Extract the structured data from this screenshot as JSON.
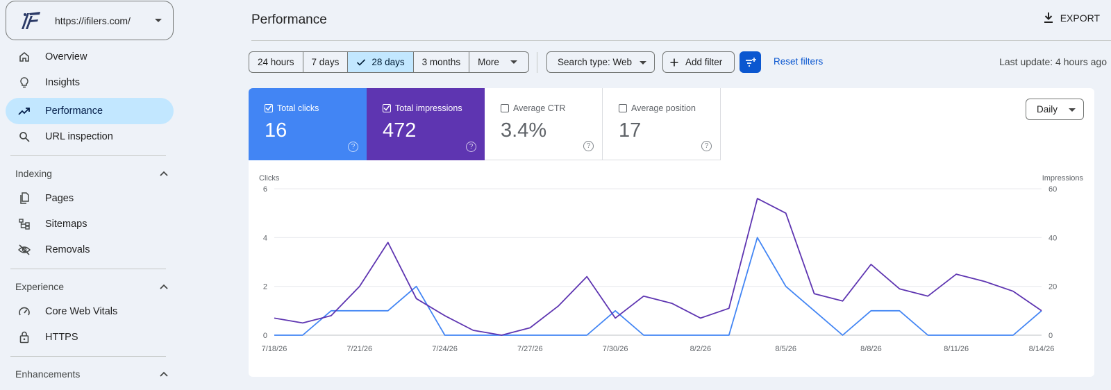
{
  "property": {
    "url": "https://ifilers.com/"
  },
  "sidebar": {
    "items": [
      {
        "label": "Overview",
        "icon": "home-icon"
      },
      {
        "label": "Insights",
        "icon": "lightbulb-icon"
      },
      {
        "label": "Performance",
        "icon": "trending-up-icon",
        "active": true
      },
      {
        "label": "URL inspection",
        "icon": "search-icon"
      }
    ],
    "indexing": {
      "title": "Indexing",
      "items": [
        {
          "label": "Pages",
          "icon": "pages-icon"
        },
        {
          "label": "Sitemaps",
          "icon": "sitemap-icon"
        },
        {
          "label": "Removals",
          "icon": "eye-off-icon"
        }
      ]
    },
    "experience": {
      "title": "Experience",
      "items": [
        {
          "label": "Core Web Vitals",
          "icon": "gauge-icon"
        },
        {
          "label": "HTTPS",
          "icon": "lock-icon"
        }
      ]
    },
    "enhancements": {
      "title": "Enhancements"
    }
  },
  "header": {
    "title": "Performance",
    "export_label": "EXPORT"
  },
  "filters": {
    "ranges": [
      "24 hours",
      "7 days",
      "28 days",
      "3 months",
      "More"
    ],
    "selected_range": "28 days",
    "search_type": "Search type: Web",
    "add_filter": "Add filter",
    "reset": "Reset filters",
    "last_update": "Last update: 4 hours ago"
  },
  "metrics": {
    "clicks": {
      "label": "Total clicks",
      "value": "16",
      "checked": true,
      "color": "#4285f4"
    },
    "impressions": {
      "label": "Total impressions",
      "value": "472",
      "checked": true,
      "color": "#5e35b1"
    },
    "ctr": {
      "label": "Average CTR",
      "value": "3.4%",
      "checked": false
    },
    "position": {
      "label": "Average position",
      "value": "17",
      "checked": false
    }
  },
  "granularity": "Daily",
  "chart_data": {
    "type": "line",
    "x": [
      "7/18/26",
      "7/19/26",
      "7/20/26",
      "7/21/26",
      "7/22/26",
      "7/23/26",
      "7/24/26",
      "7/25/26",
      "7/26/26",
      "7/27/26",
      "7/28/26",
      "7/29/26",
      "7/30/26",
      "7/31/26",
      "8/1/26",
      "8/2/26",
      "8/3/26",
      "8/4/26",
      "8/5/26",
      "8/6/26",
      "8/7/26",
      "8/8/26",
      "8/9/26",
      "8/10/26",
      "8/11/26",
      "8/12/26",
      "8/13/26",
      "8/14/26"
    ],
    "x_tick_labels": [
      "7/18/26",
      "7/21/26",
      "7/24/26",
      "7/27/26",
      "7/30/26",
      "8/2/26",
      "8/5/26",
      "8/8/26",
      "8/11/26",
      "8/14/26"
    ],
    "left_axis": {
      "label": "Clicks",
      "ticks": [
        0,
        2,
        4,
        6
      ],
      "ylim": [
        0,
        6
      ]
    },
    "right_axis": {
      "label": "Impressions",
      "ticks": [
        0,
        20,
        40,
        60
      ],
      "ylim": [
        0,
        60
      ]
    },
    "series": [
      {
        "name": "Total clicks",
        "axis": "left",
        "color": "#4285f4",
        "values": [
          0,
          0,
          1,
          1,
          1,
          2,
          0,
          0,
          0,
          0,
          0,
          0,
          1,
          0,
          0,
          0,
          0,
          4,
          2,
          1,
          0,
          1,
          1,
          0,
          0,
          0,
          0,
          1
        ]
      },
      {
        "name": "Total impressions",
        "axis": "right",
        "color": "#5e35b1",
        "values": [
          7,
          5,
          8,
          20,
          38,
          15,
          8,
          2,
          0,
          3,
          12,
          24,
          7,
          16,
          13,
          7,
          11,
          56,
          50,
          17,
          14,
          29,
          19,
          16,
          25,
          22,
          18,
          10
        ]
      }
    ],
    "grid": true
  }
}
